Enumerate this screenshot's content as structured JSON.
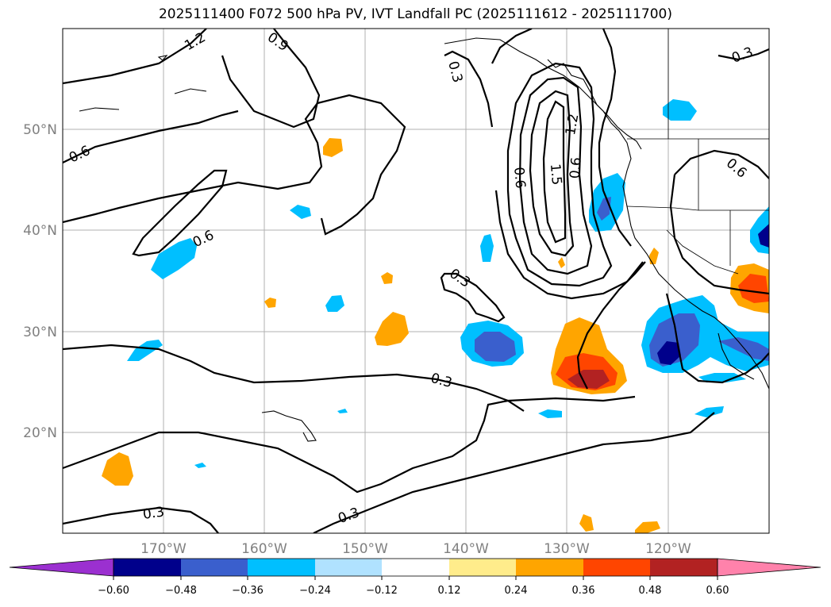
{
  "title": "2025111400 F072 500 hPa PV, IVT Landfall PC (2025111612 - 2025111700)",
  "map": {
    "lat_labels": [
      "50°N",
      "40°N",
      "30°N",
      "20°N"
    ],
    "lon_labels": [
      "170°W",
      "160°W",
      "150°W",
      "140°W",
      "130°W",
      "120°W"
    ],
    "contour_labels": [
      "1.2",
      "0.9",
      "0.3",
      "0.6",
      "0.6",
      "0.6",
      "1.5",
      "0.6",
      "1.2",
      "0.6",
      "0.3",
      "0.3",
      "0.3",
      "0.3",
      "0.3"
    ],
    "extent": {
      "lon_min": -180,
      "lon_max": -110,
      "lat_min": 10,
      "lat_max": 60
    }
  },
  "colorbar": {
    "ticks": [
      "−0.60",
      "−0.48",
      "−0.36",
      "−0.24",
      "−0.12",
      "0.12",
      "0.24",
      "0.36",
      "0.48",
      "0.60"
    ],
    "colors": {
      "lt_-0.60": "#9b30d0",
      "-0.60_-0.48": "#00008b",
      "-0.48_-0.36": "#3a5fcd",
      "-0.36_-0.24": "#00bfff",
      "-0.24_-0.12": "#b0e2ff",
      "-0.12_0.12": "#ffffff",
      "0.12_0.24": "#ffec8b",
      "0.24_0.36": "#ffa500",
      "0.36_0.48": "#ff4500",
      "0.48_0.60": "#b22222",
      "gt_0.60": "#ff82ab"
    }
  }
}
